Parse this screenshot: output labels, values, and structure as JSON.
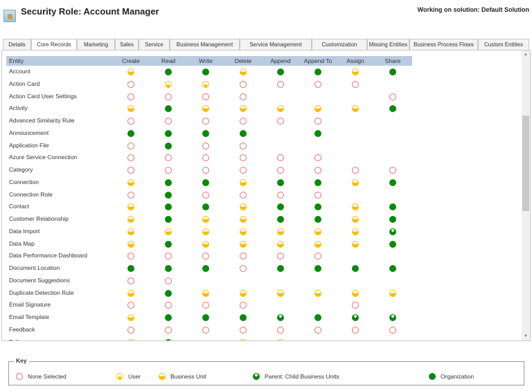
{
  "header": {
    "title": "Security Role: Account Manager",
    "solution": "Working on solution: Default Solution"
  },
  "tabs": [
    "Details",
    "Core Records",
    "Marketing",
    "Sales",
    "Service",
    "Business Management",
    "Service Management",
    "Customization",
    "Missing Entities",
    "Business Process Flows",
    "Custom Entities"
  ],
  "active_tab": "Core Records",
  "columns": [
    "Entity",
    "Create",
    "Read",
    "Write",
    "Delete",
    "Append",
    "Append To",
    "Assign",
    "Share"
  ],
  "level_colors": {
    "none": "#f26a6a",
    "user": "#f6c000",
    "bu": "#f6c000",
    "parent": "#0a8a0a",
    "org": "#0a8a0a"
  },
  "rows": [
    {
      "entity": "Account",
      "levels": [
        "bu",
        "org",
        "org",
        "bu",
        "org",
        "org",
        "bu",
        "org"
      ]
    },
    {
      "entity": "Action Card",
      "levels": [
        "none",
        "user",
        "user",
        "none",
        "none",
        "none",
        "none",
        ""
      ]
    },
    {
      "entity": "Action Card User Settings",
      "levels": [
        "none",
        "none",
        "none",
        "none",
        "",
        "",
        "",
        "none"
      ]
    },
    {
      "entity": "Activity",
      "levels": [
        "bu",
        "org",
        "bu",
        "bu",
        "bu",
        "bu",
        "bu",
        "org"
      ]
    },
    {
      "entity": "Advanced Similarity Rule",
      "levels": [
        "none",
        "none",
        "none",
        "none",
        "none",
        "none",
        "",
        ""
      ]
    },
    {
      "entity": "Announcement",
      "levels": [
        "org",
        "org",
        "org",
        "org",
        "",
        "org",
        "",
        ""
      ]
    },
    {
      "entity": "Application File",
      "levels": [
        "none",
        "org",
        "none",
        "none",
        "",
        "",
        "",
        ""
      ]
    },
    {
      "entity": "Azure Service Connection",
      "levels": [
        "none",
        "none",
        "none",
        "none",
        "none",
        "none",
        "",
        ""
      ]
    },
    {
      "entity": "Category",
      "levels": [
        "none",
        "none",
        "none",
        "none",
        "none",
        "none",
        "none",
        "none"
      ]
    },
    {
      "entity": "Connection",
      "levels": [
        "bu",
        "org",
        "org",
        "bu",
        "org",
        "org",
        "bu",
        "org"
      ]
    },
    {
      "entity": "Connection Role",
      "levels": [
        "none",
        "org",
        "none",
        "none",
        "none",
        "none",
        "",
        ""
      ]
    },
    {
      "entity": "Contact",
      "levels": [
        "bu",
        "org",
        "org",
        "bu",
        "org",
        "org",
        "bu",
        "org"
      ]
    },
    {
      "entity": "Customer Relationship",
      "levels": [
        "bu",
        "org",
        "bu",
        "bu",
        "org",
        "org",
        "bu",
        "org"
      ]
    },
    {
      "entity": "Data Import",
      "levels": [
        "bu",
        "bu",
        "bu",
        "bu",
        "bu",
        "bu",
        "bu",
        "parent"
      ]
    },
    {
      "entity": "Data Map",
      "levels": [
        "bu",
        "org",
        "bu",
        "bu",
        "bu",
        "bu",
        "bu",
        "org"
      ]
    },
    {
      "entity": "Data Performance Dashboard",
      "levels": [
        "none",
        "none",
        "none",
        "none",
        "none",
        "none",
        "",
        ""
      ]
    },
    {
      "entity": "Document Location",
      "levels": [
        "org",
        "org",
        "org",
        "none",
        "org",
        "org",
        "org",
        "org"
      ]
    },
    {
      "entity": "Document Suggestions",
      "levels": [
        "none",
        "none",
        "",
        "",
        "",
        "",
        "",
        ""
      ]
    },
    {
      "entity": "Duplicate Detection Rule",
      "levels": [
        "bu",
        "org",
        "bu",
        "bu",
        "bu",
        "bu",
        "bu",
        "bu"
      ]
    },
    {
      "entity": "Email Signature",
      "levels": [
        "none",
        "none",
        "none",
        "none",
        "",
        "",
        "none",
        ""
      ]
    },
    {
      "entity": "Email Template",
      "levels": [
        "bu",
        "org",
        "org",
        "org",
        "parent",
        "org",
        "parent",
        "parent"
      ]
    },
    {
      "entity": "Feedback",
      "levels": [
        "none",
        "none",
        "none",
        "none",
        "none",
        "none",
        "none",
        "none"
      ]
    },
    {
      "entity": "Follow",
      "levels": [
        "user",
        "org",
        "",
        "user",
        "user",
        "",
        "",
        ""
      ]
    }
  ],
  "key": {
    "title": "Key",
    "items": [
      {
        "level": "none",
        "label": "None Selected"
      },
      {
        "level": "user",
        "label": "User"
      },
      {
        "level": "bu",
        "label": "Business Unit"
      },
      {
        "level": "parent",
        "label": "Parent: Child Business Units"
      },
      {
        "level": "org",
        "label": "Organization"
      }
    ]
  }
}
